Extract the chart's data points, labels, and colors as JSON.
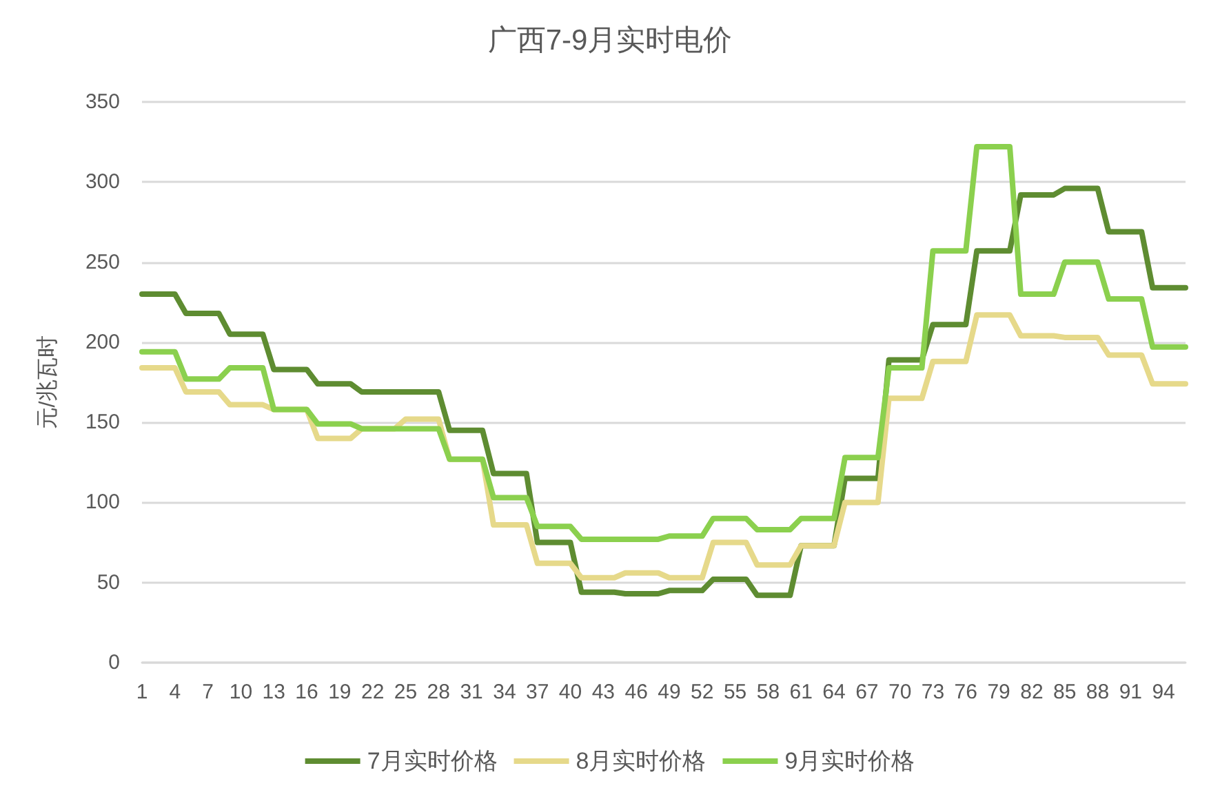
{
  "chart_data": {
    "type": "line",
    "title": "广西7-9月实时电价",
    "ylabel": "元/兆瓦时",
    "categories": [
      "1",
      null,
      null,
      "4",
      null,
      null,
      "7",
      null,
      null,
      "10",
      null,
      null,
      "13",
      null,
      null,
      "16",
      null,
      null,
      "19",
      null,
      null,
      "22",
      null,
      null,
      "25",
      null,
      null,
      "28",
      null,
      null,
      "31",
      null,
      null,
      "34",
      null,
      null,
      "37",
      null,
      null,
      "40",
      null,
      null,
      "43",
      null,
      null,
      "46",
      null,
      null,
      "49",
      null,
      null,
      "52",
      null,
      null,
      "55",
      null,
      null,
      "58",
      null,
      null,
      "61",
      null,
      null,
      "64",
      null,
      null,
      "67",
      null,
      null,
      "70",
      null,
      null,
      "73",
      null,
      null,
      "76",
      null,
      null,
      "79",
      null,
      null,
      "82",
      null,
      null,
      "85",
      null,
      null,
      "88",
      null,
      null,
      "91",
      null,
      null,
      "94",
      null,
      null
    ],
    "series": [
      {
        "name": "7月实时价格",
        "color": "#5e8c31",
        "values": [
          230,
          230,
          230,
          230,
          218,
          218,
          218,
          218,
          205,
          205,
          205,
          205,
          183,
          183,
          183,
          183,
          174,
          174,
          174,
          174,
          169,
          169,
          169,
          169,
          169,
          169,
          169,
          169,
          145,
          145,
          145,
          145,
          118,
          118,
          118,
          118,
          75,
          75,
          75,
          75,
          44,
          44,
          44,
          44,
          43,
          43,
          43,
          43,
          45,
          45,
          45,
          45,
          52,
          52,
          52,
          52,
          42,
          42,
          42,
          42,
          73,
          73,
          73,
          73,
          115,
          115,
          115,
          115,
          189,
          189,
          189,
          189,
          211,
          211,
          211,
          211,
          257,
          257,
          257,
          257,
          292,
          292,
          292,
          292,
          296,
          296,
          296,
          296,
          269,
          269,
          269,
          269,
          234,
          234,
          234,
          234
        ]
      },
      {
        "name": "8月实时价格",
        "color": "#e6d98a",
        "values": [
          184,
          184,
          184,
          184,
          169,
          169,
          169,
          169,
          161,
          161,
          161,
          161,
          158,
          158,
          158,
          158,
          140,
          140,
          140,
          140,
          146,
          146,
          146,
          146,
          152,
          152,
          152,
          152,
          127,
          127,
          127,
          127,
          86,
          86,
          86,
          86,
          62,
          62,
          62,
          62,
          53,
          53,
          53,
          53,
          56,
          56,
          56,
          56,
          53,
          53,
          53,
          53,
          75,
          75,
          75,
          75,
          61,
          61,
          61,
          61,
          73,
          73,
          73,
          73,
          100,
          100,
          100,
          100,
          165,
          165,
          165,
          165,
          188,
          188,
          188,
          188,
          217,
          217,
          217,
          217,
          204,
          204,
          204,
          204,
          203,
          203,
          203,
          203,
          192,
          192,
          192,
          192,
          174,
          174,
          174,
          174
        ]
      },
      {
        "name": "9月实时价格",
        "color": "#8bd04e",
        "values": [
          194,
          194,
          194,
          194,
          177,
          177,
          177,
          177,
          184,
          184,
          184,
          184,
          158,
          158,
          158,
          158,
          149,
          149,
          149,
          149,
          146,
          146,
          146,
          146,
          146,
          146,
          146,
          146,
          127,
          127,
          127,
          127,
          103,
          103,
          103,
          103,
          85,
          85,
          85,
          85,
          77,
          77,
          77,
          77,
          77,
          77,
          77,
          77,
          79,
          79,
          79,
          79,
          90,
          90,
          90,
          90,
          83,
          83,
          83,
          83,
          90,
          90,
          90,
          90,
          128,
          128,
          128,
          128,
          184,
          184,
          184,
          184,
          257,
          257,
          257,
          257,
          322,
          322,
          322,
          322,
          230,
          230,
          230,
          230,
          250,
          250,
          250,
          250,
          227,
          227,
          227,
          227,
          197,
          197,
          197,
          197
        ]
      }
    ],
    "ylim": [
      0,
      350
    ],
    "yticks": [
      0,
      50,
      100,
      150,
      200,
      250,
      300,
      350
    ],
    "grid": "y",
    "legend": "bottom",
    "marker": "none",
    "line_style": "solid"
  }
}
